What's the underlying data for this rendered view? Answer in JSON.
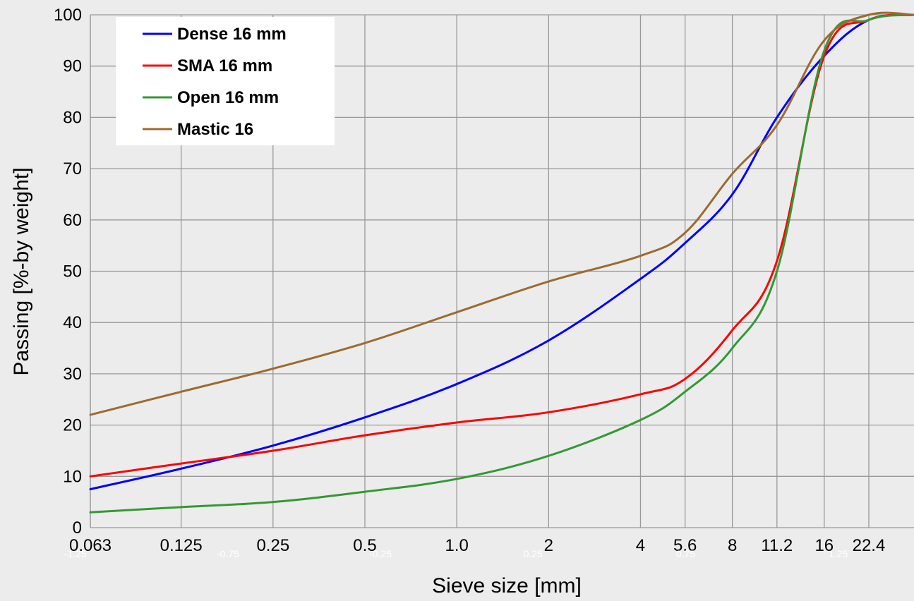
{
  "chart_data": {
    "type": "line",
    "xlabel": "Sieve size [mm]",
    "ylabel": "Passing [%-by weight]",
    "x_scale": "log",
    "xlim": [
      0.063,
      31.5
    ],
    "ylim": [
      0,
      100
    ],
    "grid": true,
    "legend_position": "top-left",
    "x_ticks": [
      "0.063",
      "0.125",
      "0.25",
      "0.5",
      "1.0",
      "2",
      "4",
      "5.6",
      "8",
      "11.2",
      "16",
      "22.4"
    ],
    "x_tick_values": [
      0.063,
      0.125,
      0.25,
      0.5,
      1.0,
      2,
      4,
      5.6,
      8,
      11.2,
      16,
      22.4
    ],
    "y_ticks": [
      "0",
      "10",
      "20",
      "30",
      "40",
      "50",
      "60",
      "70",
      "80",
      "90",
      "100"
    ],
    "secondary_x_ticks": [
      "-1.25",
      "-0.75",
      "-0.25",
      "0.25",
      "0.75",
      "1.25"
    ],
    "series": [
      {
        "name": "Dense 16 mm",
        "color": "#0000ff",
        "x": [
          0.063,
          0.125,
          0.25,
          0.5,
          1.0,
          2,
          4,
          5.6,
          8,
          11.2,
          16,
          22.4,
          31.5
        ],
        "y": [
          7.5,
          11.5,
          16,
          21.5,
          28,
          36.5,
          48.5,
          55.5,
          65,
          80,
          92,
          99,
          100
        ]
      },
      {
        "name": "SMA 16 mm",
        "color": "#ff0000",
        "x": [
          0.063,
          0.125,
          0.25,
          0.5,
          1.0,
          2,
          4,
          5.6,
          8,
          11.2,
          16,
          22.4,
          31.5
        ],
        "y": [
          10,
          12.5,
          15,
          18,
          20.5,
          22.5,
          26,
          29,
          38.5,
          52,
          92,
          99,
          100
        ]
      },
      {
        "name": "Open 16 mm",
        "color": "#339933",
        "x": [
          0.063,
          0.125,
          0.25,
          0.5,
          1.0,
          2,
          4,
          5.6,
          8,
          11.2,
          16,
          22.4,
          31.5
        ],
        "y": [
          3,
          4,
          5,
          7,
          9.5,
          14,
          21,
          26.5,
          35,
          50,
          93,
          99,
          100
        ]
      },
      {
        "name": "Mastic 16",
        "color": "#9c6b30",
        "x": [
          0.063,
          0.125,
          0.25,
          0.5,
          1.0,
          2,
          4,
          5.6,
          8,
          11.2,
          16,
          22.4,
          31.5
        ],
        "y": [
          22,
          26.5,
          31,
          36,
          42,
          48,
          53,
          57.5,
          69,
          78.5,
          95,
          100,
          100
        ]
      }
    ]
  }
}
